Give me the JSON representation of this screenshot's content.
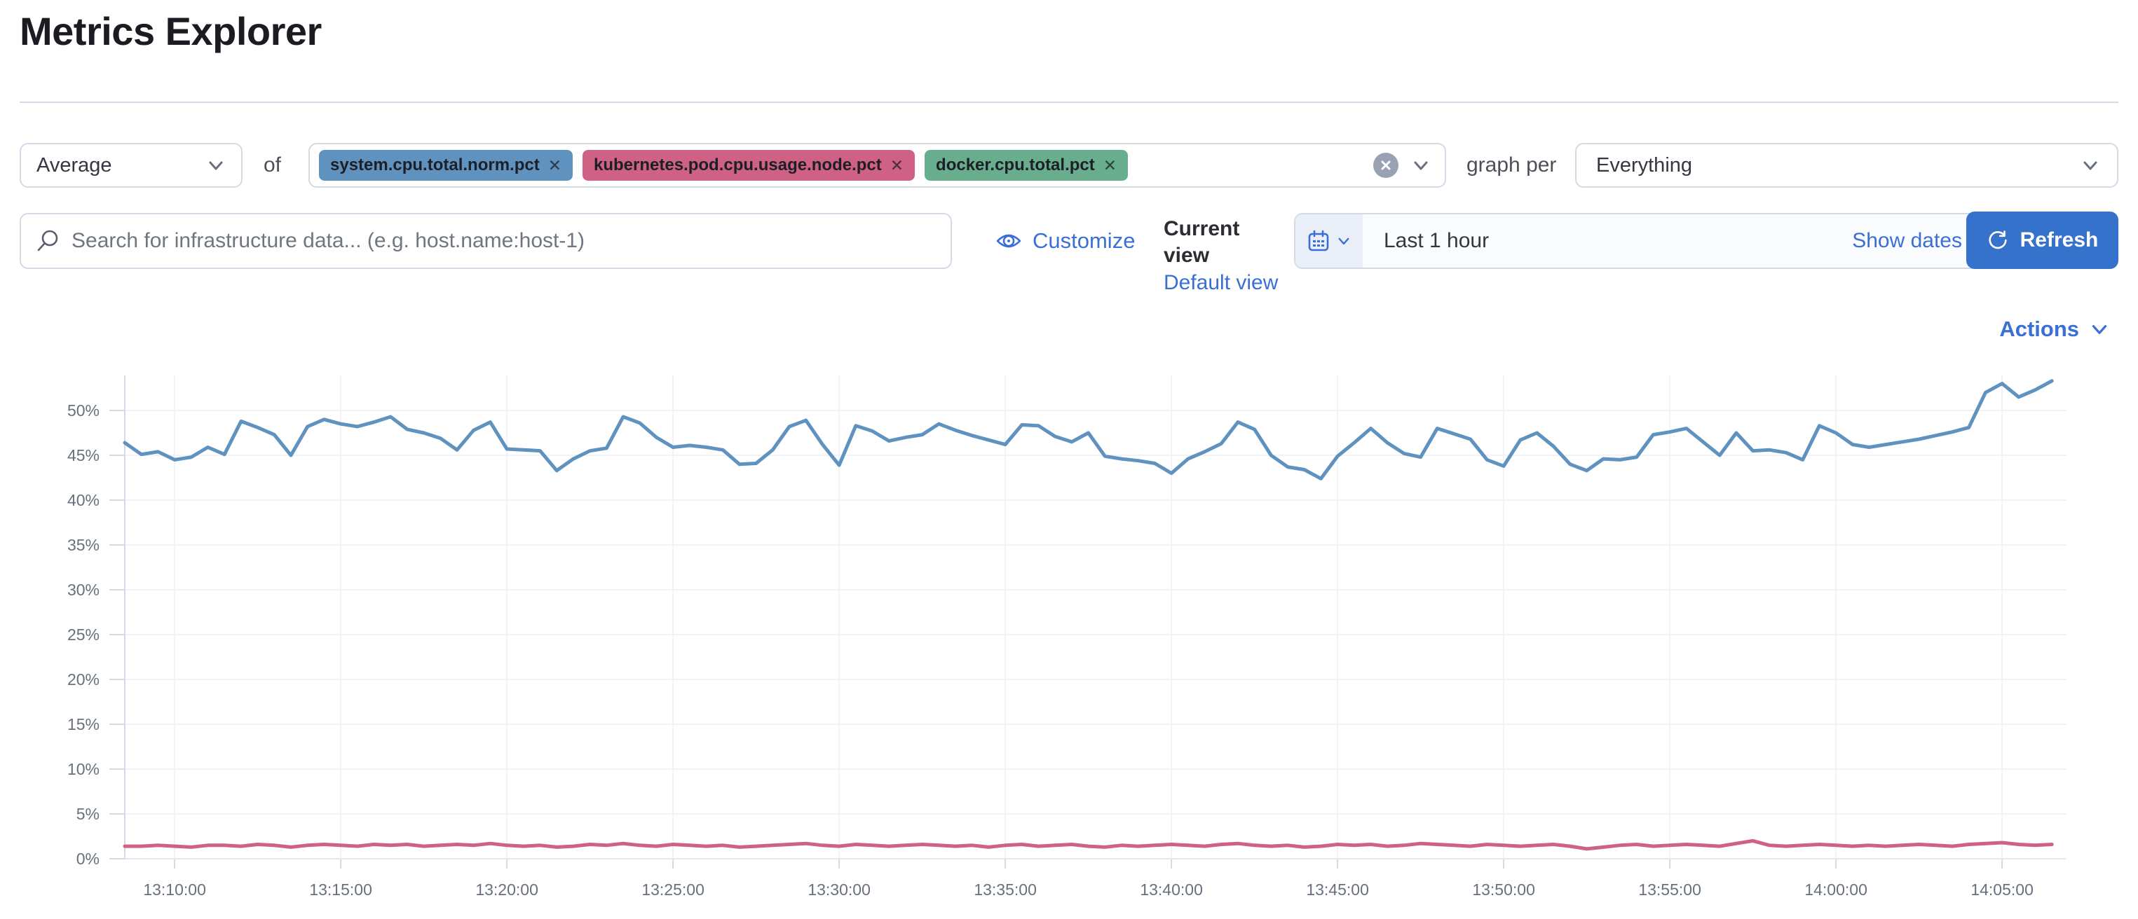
{
  "page_title": "Metrics Explorer",
  "icons": {
    "close_glyph": "✕"
  },
  "colors": {
    "accent_link": "#3A6FD6",
    "button_fill": "#3572CC",
    "border": "#D3DAE6",
    "text_primary": "#343741",
    "text_secondary": "#69707D"
  },
  "toolbar": {
    "aggregation_value": "Average",
    "of_label": "of",
    "metrics": [
      {
        "label": "system.cpu.total.norm.pct",
        "color": "#6092C0"
      },
      {
        "label": "kubernetes.pod.cpu.usage.node.pct",
        "color": "#CE6184"
      },
      {
        "label": "docker.cpu.total.pct",
        "color": "#69AD8F"
      }
    ],
    "graph_per_label": "graph per",
    "group_by_value": "Everything"
  },
  "searchbar": {
    "placeholder": "Search for infrastructure data... (e.g. host.name:host-1)",
    "value": ""
  },
  "view_controls": {
    "customize_label": "Customize",
    "current_view_label": "Current view",
    "default_view_label": "Default view"
  },
  "datepicker": {
    "range_label": "Last 1 hour",
    "show_dates_label": "Show dates",
    "refresh_label": "Refresh"
  },
  "actions": {
    "label": "Actions"
  },
  "chart_data": {
    "type": "line",
    "title": "",
    "xlabel": "",
    "ylabel": "",
    "y_unit": "%",
    "ylim": [
      0,
      55
    ],
    "grid": true,
    "legend": "none",
    "x_start": "13:08:30",
    "x_interval_seconds": 30,
    "x_tick_labels": [
      "13:10:00",
      "13:15:00",
      "13:20:00",
      "13:25:00",
      "13:30:00",
      "13:35:00",
      "13:40:00",
      "13:45:00",
      "13:50:00",
      "13:55:00",
      "14:00:00",
      "14:05:00"
    ],
    "y_ticks": [
      0,
      5,
      10,
      15,
      20,
      25,
      30,
      35,
      40,
      45,
      50
    ],
    "y_tick_labels": [
      "0%",
      "5%",
      "10%",
      "15%",
      "20%",
      "25%",
      "30%",
      "35%",
      "40%",
      "45%",
      "50%"
    ],
    "series": [
      {
        "name": "system.cpu.total.norm.pct",
        "color": "#6092C0",
        "values": [
          46.4,
          45.1,
          45.4,
          44.5,
          44.8,
          45.9,
          45.1,
          48.8,
          48.1,
          47.3,
          45.0,
          48.2,
          49.0,
          48.5,
          48.2,
          48.7,
          49.3,
          47.9,
          47.5,
          46.9,
          45.6,
          47.8,
          48.7,
          45.7,
          45.6,
          45.5,
          43.3,
          44.6,
          45.5,
          45.8,
          49.3,
          48.6,
          47.0,
          45.9,
          46.1,
          45.9,
          45.6,
          44.0,
          44.1,
          45.6,
          48.2,
          48.9,
          46.2,
          43.9,
          48.3,
          47.7,
          46.6,
          47.0,
          47.3,
          48.5,
          47.8,
          47.2,
          46.7,
          46.2,
          48.4,
          48.3,
          47.1,
          46.5,
          47.5,
          44.9,
          44.6,
          44.4,
          44.1,
          43.0,
          44.6,
          45.4,
          46.3,
          48.7,
          47.9,
          45.0,
          43.7,
          43.4,
          42.4,
          44.9,
          46.4,
          48.0,
          46.4,
          45.2,
          44.8,
          48.0,
          47.4,
          46.8,
          44.5,
          43.8,
          46.7,
          47.5,
          46.0,
          44.0,
          43.3,
          44.6,
          44.5,
          44.8,
          47.3,
          47.6,
          48.0,
          46.5,
          45.0,
          47.5,
          45.5,
          45.6,
          45.3,
          44.5,
          48.3,
          47.5,
          46.2,
          45.9,
          46.2,
          46.5,
          46.8,
          47.2,
          47.6,
          48.1,
          52.0,
          53.0,
          51.5,
          52.3,
          53.3
        ]
      },
      {
        "name": "kubernetes.pod.cpu.usage.node.pct",
        "color": "#CE6184",
        "values": [
          1.4,
          1.4,
          1.5,
          1.4,
          1.3,
          1.5,
          1.5,
          1.4,
          1.6,
          1.5,
          1.3,
          1.5,
          1.6,
          1.5,
          1.4,
          1.6,
          1.5,
          1.6,
          1.4,
          1.5,
          1.6,
          1.5,
          1.7,
          1.5,
          1.4,
          1.5,
          1.3,
          1.4,
          1.6,
          1.5,
          1.7,
          1.5,
          1.4,
          1.6,
          1.5,
          1.4,
          1.5,
          1.3,
          1.4,
          1.5,
          1.6,
          1.7,
          1.5,
          1.4,
          1.6,
          1.5,
          1.4,
          1.5,
          1.6,
          1.5,
          1.4,
          1.5,
          1.3,
          1.5,
          1.6,
          1.4,
          1.5,
          1.6,
          1.4,
          1.3,
          1.5,
          1.4,
          1.5,
          1.6,
          1.5,
          1.4,
          1.6,
          1.7,
          1.5,
          1.4,
          1.5,
          1.3,
          1.4,
          1.6,
          1.5,
          1.6,
          1.4,
          1.5,
          1.7,
          1.6,
          1.5,
          1.4,
          1.6,
          1.5,
          1.4,
          1.5,
          1.6,
          1.4,
          1.1,
          1.3,
          1.5,
          1.6,
          1.4,
          1.5,
          1.6,
          1.5,
          1.4,
          1.7,
          2.0,
          1.5,
          1.4,
          1.5,
          1.6,
          1.5,
          1.4,
          1.5,
          1.4,
          1.5,
          1.6,
          1.5,
          1.4,
          1.6,
          1.7,
          1.8,
          1.6,
          1.5,
          1.6
        ]
      }
    ]
  }
}
